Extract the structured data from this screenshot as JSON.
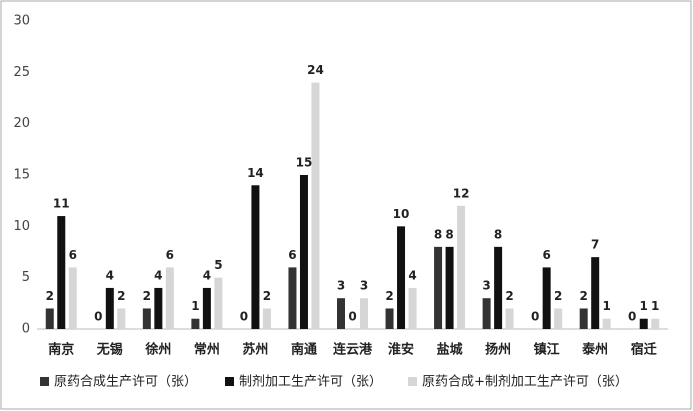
{
  "chart_data": {
    "type": "bar",
    "categories": [
      "南京",
      "无锡",
      "徐州",
      "常州",
      "苏州",
      "南通",
      "连云港",
      "淮安",
      "盐城",
      "扬州",
      "镇江",
      "泰州",
      "宿迁"
    ],
    "series": [
      {
        "name": "原药合成生产许可（张）",
        "color": "#333333",
        "values": [
          2,
          0,
          2,
          1,
          0,
          6,
          3,
          2,
          8,
          3,
          0,
          2,
          0
        ]
      },
      {
        "name": "制剂加工生产许可（张）",
        "color": "#111111",
        "values": [
          11,
          4,
          4,
          4,
          14,
          15,
          0,
          10,
          8,
          8,
          6,
          7,
          1
        ]
      },
      {
        "name": "原药合成+制剂加工生产许可（张）",
        "color": "#d6d6d6",
        "values": [
          6,
          2,
          6,
          5,
          2,
          24,
          3,
          4,
          12,
          2,
          2,
          1,
          1
        ]
      }
    ],
    "ylim": [
      0,
      30
    ],
    "yticks": [
      0,
      5,
      10,
      15,
      20,
      25,
      30
    ],
    "grid": false,
    "legend": "bottom"
  }
}
